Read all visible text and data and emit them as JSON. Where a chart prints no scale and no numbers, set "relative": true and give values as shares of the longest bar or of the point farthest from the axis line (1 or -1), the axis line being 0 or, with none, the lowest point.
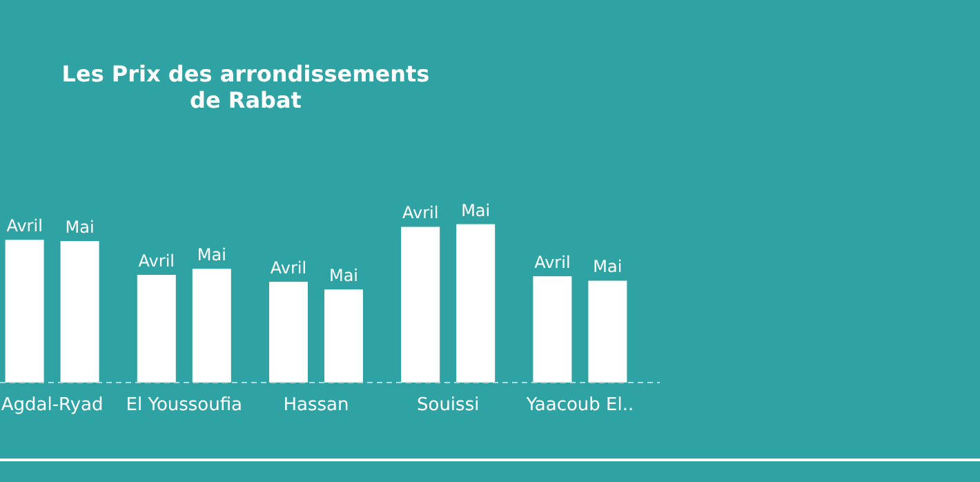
{
  "chart_data": {
    "type": "bar",
    "title": "Les Prix des arrondissements\nde Rabat",
    "relative": true,
    "categories": [
      "Agdal-Ryad",
      "El Youssoufia",
      "Hassan",
      "Souissi",
      "Yaacoub El.."
    ],
    "series": [
      {
        "name": "Avril",
        "color": "#ffffff",
        "values": [
          0.901,
          0.68,
          0.636,
          0.983,
          0.671
        ]
      },
      {
        "name": "Mai",
        "color": "#ffffff",
        "values": [
          0.893,
          0.718,
          0.588,
          1,
          0.643
        ]
      }
    ]
  }
}
